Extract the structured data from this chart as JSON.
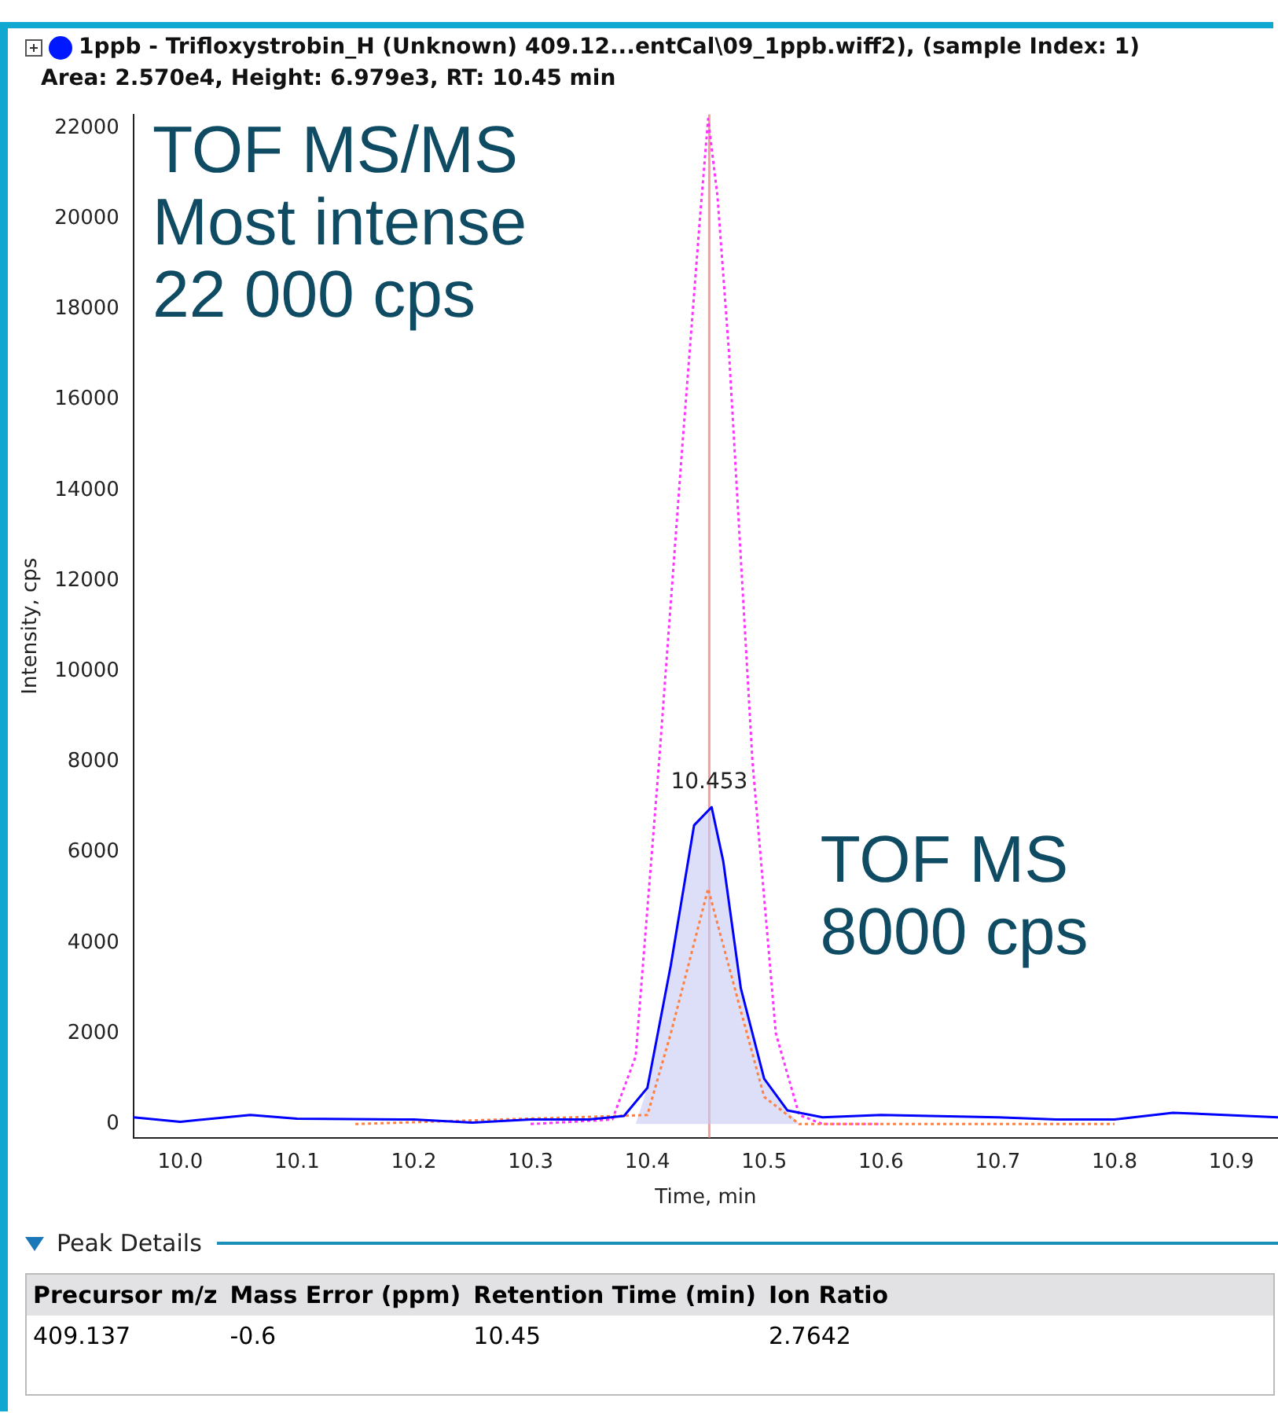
{
  "chart_data": [
    {
      "type": "line",
      "title": "1ppb - Trifloxystrobin_H (Unknown) 409.12...entCal\\09_1ppb.wiff2), (sample Index: 1)",
      "subtitle": "Area: 2.570e4, Height: 6.979e3, RT: 10.45 min",
      "xlabel": "Time, min",
      "ylabel": "Intensity, cps",
      "xlim": [
        9.96,
        10.94
      ],
      "xticks": [
        {
          "value": 10,
          "label": "10.0"
        },
        10.1,
        10.2,
        10.3,
        10.4,
        10.5,
        10.6,
        10.7,
        10.8,
        10.9
      ],
      "ylim": [
        -300,
        22300
      ],
      "yticks": [
        0,
        2000,
        4000,
        6000,
        8000,
        10000,
        12000,
        14000,
        16000,
        18000,
        20000,
        22000
      ],
      "grid": false,
      "legend": false,
      "marker": "none",
      "series": [
        {
          "type": "area",
          "color": "#c6c8f4",
          "x": [
            10.39,
            10.4,
            10.42,
            10.44,
            10.455,
            10.465,
            10.48,
            10.5,
            10.52,
            10.53
          ],
          "values": [
            0,
            800,
            3500,
            6600,
            7000,
            5800,
            3000,
            1000,
            300,
            0
          ]
        },
        {
          "type": "line",
          "color": "#ff33ff",
          "line_style": "dotted",
          "x": [
            10.3,
            10.37,
            10.39,
            10.41,
            10.43,
            10.445,
            10.452,
            10.46,
            10.47,
            10.49,
            10.51,
            10.53,
            10.55,
            10.6
          ],
          "values": [
            0,
            100,
            1500,
            8000,
            15000,
            20000,
            22200,
            20500,
            17000,
            8000,
            2000,
            200,
            0,
            0
          ]
        },
        {
          "type": "line",
          "color": "#ff8040",
          "line_style": "dotted",
          "x": [
            10.15,
            10.4,
            10.42,
            10.452,
            10.48,
            10.5,
            10.53,
            10.8
          ],
          "values": [
            0,
            200,
            2000,
            5200,
            2500,
            600,
            0,
            0
          ]
        },
        {
          "type": "line",
          "color": "#0000ff",
          "line_style": "solid",
          "x": [
            9.96,
            10.0,
            10.06,
            10.1,
            10.2,
            10.25,
            10.3,
            10.35,
            10.38,
            10.4,
            10.42,
            10.44,
            10.455,
            10.465,
            10.48,
            10.5,
            10.52,
            10.55,
            10.6,
            10.7,
            10.75,
            10.8,
            10.85,
            10.94
          ],
          "values": [
            150,
            50,
            200,
            120,
            100,
            30,
            100,
            100,
            180,
            800,
            3500,
            6600,
            7000,
            5800,
            3000,
            1000,
            300,
            150,
            200,
            150,
            100,
            100,
            250,
            150
          ]
        }
      ],
      "ref_lines": [
        {
          "axis": "x",
          "value": 10.453,
          "color": "#f4a0a0"
        }
      ],
      "annotations": [
        {
          "text": "10.453",
          "x": 10.453,
          "y": 7300
        },
        "TOF MS/MS\nMost intense\n22 000 cps",
        "TOF MS\n8000 cps"
      ]
    },
    {
      "type": "other",
      "title": "Peak Details",
      "categories": [
        "Precursor m/z",
        "Mass Error (ppm)",
        "Retention Time (min)",
        "Ion Ratio"
      ],
      "values": [
        409.137,
        -0.6,
        10.45,
        2.7642
      ],
      "data_labels": true
    }
  ]
}
